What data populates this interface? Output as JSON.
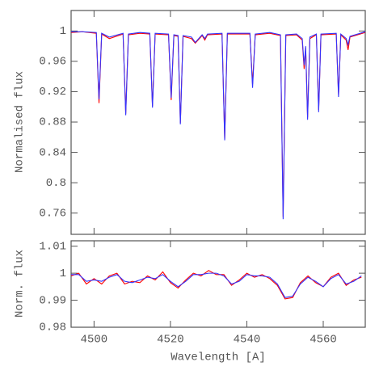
{
  "chart_data": [
    {
      "type": "line",
      "ylabel": "Normalised flux",
      "xlim": [
        4494,
        4571
      ],
      "ylim": [
        0.732,
        1.027
      ],
      "xticks": [
        4500,
        4520,
        4540,
        4560
      ],
      "yticks": [
        0.76,
        0.8,
        0.84,
        0.88,
        0.92,
        0.96,
        1
      ],
      "grid": false,
      "x": [
        4494,
        4497,
        4500.6,
        4501.3,
        4502,
        4504,
        4507.6,
        4508.3,
        4509,
        4512,
        4514.6,
        4515.3,
        4516,
        4519.5,
        4520.2,
        4520.9,
        4522.0,
        4522.6,
        4523.3,
        4525.5,
        4526.5,
        4528.3,
        4529,
        4529.7,
        4533.5,
        4534.2,
        4534.9,
        4540.8,
        4541.5,
        4542.2,
        4546,
        4548.8,
        4549.5,
        4550.2,
        4553,
        4554.5,
        4555.0,
        4555.4,
        4555.9,
        4556.5,
        4558.2,
        4558.8,
        4559.4,
        4563.4,
        4564,
        4564.6,
        4566,
        4566.5,
        4567,
        4571
      ],
      "series": [
        {
          "color": "#ff0000",
          "values": [
            0.998,
            0.999,
            0.997,
            0.905,
            0.996,
            0.99,
            0.996,
            0.891,
            0.995,
            0.997,
            0.996,
            0.901,
            0.996,
            0.995,
            0.909,
            0.994,
            0.993,
            0.879,
            0.993,
            0.99,
            0.984,
            0.994,
            0.988,
            0.995,
            0.996,
            0.858,
            0.996,
            0.996,
            0.93,
            0.995,
            0.997,
            0.994,
            0.755,
            0.994,
            0.995,
            0.988,
            0.95,
            0.978,
            0.886,
            0.99,
            0.995,
            0.896,
            0.995,
            0.996,
            0.916,
            0.995,
            0.988,
            0.975,
            0.992,
            0.998
          ]
        },
        {
          "color": "#3333ff",
          "values": [
            0.999,
            0.999,
            0.998,
            0.91,
            0.997,
            0.992,
            0.997,
            0.889,
            0.996,
            0.998,
            0.997,
            0.899,
            0.997,
            0.996,
            0.912,
            0.995,
            0.994,
            0.877,
            0.994,
            0.992,
            0.985,
            0.995,
            0.99,
            0.996,
            0.997,
            0.856,
            0.997,
            0.997,
            0.925,
            0.996,
            0.998,
            0.995,
            0.752,
            0.995,
            0.996,
            0.99,
            0.955,
            0.98,
            0.883,
            0.992,
            0.996,
            0.893,
            0.996,
            0.997,
            0.913,
            0.996,
            0.99,
            0.982,
            0.993,
            0.999
          ]
        }
      ]
    },
    {
      "type": "line",
      "ylabel": "Norm. flux",
      "xlabel": "Wavelength [A]",
      "xlim": [
        4494,
        4571
      ],
      "ylim": [
        0.98,
        1.012
      ],
      "xticks": [
        4500,
        4520,
        4540,
        4560
      ],
      "yticks": [
        0.98,
        0.99,
        1,
        1.01
      ],
      "grid": false,
      "x": [
        4494,
        4496,
        4498,
        4500,
        4502,
        4504,
        4506,
        4508,
        4510,
        4512,
        4514,
        4516,
        4518,
        4520,
        4522,
        4524,
        4526,
        4528,
        4530,
        4532,
        4534,
        4536,
        4538,
        4540,
        4542,
        4544,
        4546,
        4548,
        4550,
        4552,
        4554,
        4556,
        4558,
        4560,
        4562,
        4564,
        4566,
        4568,
        4570
      ],
      "series": [
        {
          "color": "#ff0000",
          "values": [
            0.999,
            1.0,
            0.996,
            0.998,
            0.996,
            0.999,
            1.0,
            0.996,
            0.997,
            0.9965,
            0.999,
            0.9975,
            1.0005,
            0.9965,
            0.9945,
            0.9975,
            1.0,
            0.999,
            1.001,
            0.9995,
            0.9995,
            0.9955,
            0.9975,
            1.0,
            0.9985,
            0.9995,
            0.998,
            0.9955,
            0.9905,
            0.991,
            0.9965,
            0.999,
            0.9965,
            0.995,
            0.9985,
            1.0,
            0.9955,
            0.9975,
            0.9985
          ]
        },
        {
          "color": "#3333ff",
          "values": [
            0.9995,
            0.9995,
            0.997,
            0.9975,
            0.997,
            0.9985,
            0.9995,
            0.997,
            0.9965,
            0.9975,
            0.9985,
            0.998,
            0.9995,
            0.997,
            0.995,
            0.997,
            0.9995,
            0.9995,
            1.0,
            1.0,
            0.999,
            0.996,
            0.997,
            0.9995,
            0.999,
            0.999,
            0.9985,
            0.996,
            0.991,
            0.9915,
            0.996,
            0.9985,
            0.997,
            0.995,
            0.998,
            0.9995,
            0.996,
            0.997,
            0.999
          ]
        }
      ]
    }
  ]
}
